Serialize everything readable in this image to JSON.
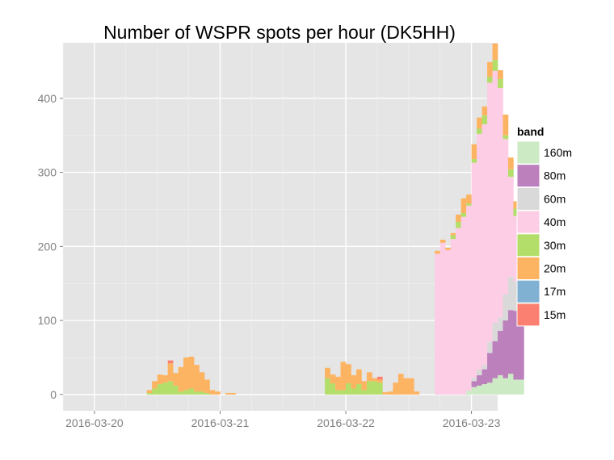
{
  "chart_data": {
    "type": "bar",
    "stacked": true,
    "title": "Number of WSPR spots per hour (DK5HH)",
    "xlabel": "",
    "ylabel": "",
    "x_ticks": [
      "2016-03-20",
      "2016-03-21",
      "2016-03-22",
      "2016-03-23"
    ],
    "y_ticks": [
      0,
      100,
      200,
      300,
      400
    ],
    "xlim_hours": [
      -6,
      77
    ],
    "ylim": [
      -22,
      475
    ],
    "legend": {
      "title": "band",
      "position": "right"
    },
    "grid": true,
    "series": [
      {
        "name": "160m",
        "color": "#CCEBC5",
        "values": [
          0,
          0,
          0,
          0,
          0,
          0,
          0,
          0,
          0,
          0,
          0,
          0,
          0,
          0,
          0,
          0,
          0,
          0,
          0,
          0,
          0,
          0,
          0,
          0,
          0,
          0,
          0,
          0,
          0,
          0,
          0,
          0,
          0,
          0,
          0,
          0,
          0,
          0,
          0,
          0,
          0,
          0,
          0,
          0,
          0,
          0,
          0,
          0,
          0,
          0,
          0,
          0,
          0,
          0,
          0,
          0,
          0,
          0,
          0,
          0,
          0,
          0,
          0,
          0,
          0,
          0,
          0,
          0,
          0,
          0,
          0,
          5,
          10,
          12,
          14,
          16,
          22,
          26,
          22,
          28,
          20,
          20
        ]
      },
      {
        "name": "80m",
        "color": "#BC80BD",
        "values": [
          0,
          0,
          0,
          0,
          0,
          0,
          0,
          0,
          0,
          0,
          0,
          0,
          0,
          0,
          0,
          0,
          0,
          0,
          0,
          0,
          0,
          0,
          0,
          0,
          0,
          0,
          0,
          0,
          0,
          0,
          0,
          0,
          0,
          0,
          0,
          0,
          0,
          0,
          0,
          0,
          0,
          0,
          0,
          0,
          0,
          0,
          0,
          0,
          0,
          0,
          0,
          0,
          0,
          0,
          0,
          0,
          0,
          0,
          0,
          0,
          0,
          0,
          0,
          0,
          0,
          0,
          0,
          0,
          0,
          0,
          0,
          0,
          8,
          14,
          20,
          40,
          50,
          60,
          78,
          86,
          93,
          88
        ]
      },
      {
        "name": "60m",
        "color": "#D9D9D9",
        "values": [
          0,
          0,
          0,
          0,
          0,
          0,
          0,
          0,
          0,
          0,
          0,
          0,
          0,
          0,
          0,
          0,
          0,
          0,
          0,
          0,
          0,
          0,
          0,
          0,
          0,
          0,
          0,
          0,
          0,
          0,
          0,
          0,
          0,
          0,
          0,
          0,
          0,
          0,
          0,
          0,
          0,
          0,
          0,
          0,
          0,
          0,
          0,
          0,
          0,
          0,
          0,
          0,
          0,
          0,
          0,
          0,
          0,
          0,
          0,
          0,
          0,
          0,
          0,
          0,
          0,
          0,
          0,
          0,
          0,
          0,
          0,
          0,
          5,
          8,
          6,
          15,
          25,
          18,
          35,
          45,
          40,
          17
        ]
      },
      {
        "name": "40m",
        "color": "#FCCDE5",
        "values": [
          0,
          0,
          0,
          0,
          0,
          0,
          0,
          0,
          0,
          0,
          0,
          0,
          0,
          0,
          0,
          0,
          0,
          0,
          0,
          0,
          0,
          0,
          0,
          0,
          0,
          0,
          0,
          0,
          0,
          0,
          0,
          0,
          0,
          0,
          0,
          0,
          0,
          0,
          0,
          0,
          0,
          0,
          0,
          0,
          0,
          0,
          0,
          0,
          0,
          0,
          0,
          0,
          0,
          0,
          0,
          0,
          0,
          0,
          0,
          0,
          0,
          0,
          0,
          0,
          0,
          190,
          205,
          195,
          210,
          225,
          240,
          250,
          290,
          318,
          325,
          350,
          340,
          310,
          210,
          135,
          88,
          105
        ]
      },
      {
        "name": "30m",
        "color": "#B3DE69",
        "values": [
          0,
          0,
          0,
          0,
          0,
          0,
          0,
          0,
          0,
          0,
          2,
          8,
          14,
          16,
          18,
          12,
          4,
          6,
          8,
          4,
          4,
          2,
          0,
          0,
          0,
          0,
          0,
          0,
          0,
          0,
          0,
          0,
          0,
          0,
          0,
          0,
          0,
          0,
          0,
          0,
          0,
          0,
          0,
          0,
          22,
          15,
          6,
          6,
          15,
          8,
          14,
          6,
          18,
          18,
          16,
          0,
          0,
          0,
          0,
          0,
          0,
          0,
          0,
          0,
          0,
          0,
          0,
          0,
          5,
          8,
          5,
          3,
          5,
          7,
          12,
          8,
          15,
          12,
          5,
          10,
          10,
          8
        ]
      },
      {
        "name": "20m",
        "color": "#FDB462",
        "values": [
          0,
          0,
          0,
          0,
          0,
          0,
          0,
          0,
          0,
          0,
          4,
          10,
          13,
          10,
          24,
          17,
          33,
          44,
          43,
          36,
          26,
          18,
          6,
          4,
          0,
          2,
          2,
          0,
          0,
          0,
          0,
          0,
          0,
          0,
          0,
          0,
          0,
          0,
          0,
          0,
          0,
          0,
          0,
          0,
          14,
          12,
          18,
          38,
          26,
          18,
          20,
          12,
          12,
          4,
          4,
          3,
          4,
          16,
          28,
          22,
          22,
          4,
          0,
          0,
          0,
          4,
          4,
          3,
          3,
          10,
          20,
          12,
          20,
          15,
          12,
          20,
          22,
          12,
          28,
          16,
          10,
          9
        ]
      },
      {
        "name": "17m",
        "color": "#80B1D3",
        "values": [
          0,
          0,
          0,
          0,
          0,
          0,
          0,
          0,
          0,
          0,
          0,
          0,
          0,
          0,
          0,
          0,
          0,
          0,
          0,
          0,
          0,
          0,
          0,
          0,
          0,
          0,
          0,
          0,
          0,
          0,
          0,
          0,
          0,
          0,
          0,
          0,
          0,
          0,
          0,
          0,
          0,
          0,
          0,
          0,
          0,
          0,
          0,
          0,
          0,
          0,
          0,
          0,
          0,
          0,
          0,
          0,
          0,
          0,
          0,
          0,
          0,
          0,
          0,
          0,
          0,
          0,
          0,
          0,
          0,
          0,
          0,
          0,
          0,
          0,
          0,
          0,
          0,
          0,
          0,
          0,
          0,
          0
        ]
      },
      {
        "name": "15m",
        "color": "#FB8072",
        "values": [
          0,
          0,
          0,
          0,
          0,
          0,
          0,
          0,
          0,
          0,
          0,
          0,
          0,
          0,
          4,
          0,
          0,
          0,
          0,
          0,
          0,
          0,
          0,
          0,
          0,
          0,
          0,
          0,
          0,
          0,
          0,
          0,
          0,
          0,
          0,
          0,
          0,
          0,
          0,
          0,
          0,
          0,
          0,
          0,
          0,
          0,
          0,
          0,
          0,
          0,
          0,
          0,
          0,
          0,
          4,
          0,
          0,
          0,
          0,
          0,
          0,
          0,
          0,
          0,
          0,
          0,
          0,
          0,
          0,
          0,
          0,
          0,
          0,
          0,
          0,
          0,
          0,
          0,
          0,
          0,
          0,
          0
        ]
      }
    ]
  }
}
